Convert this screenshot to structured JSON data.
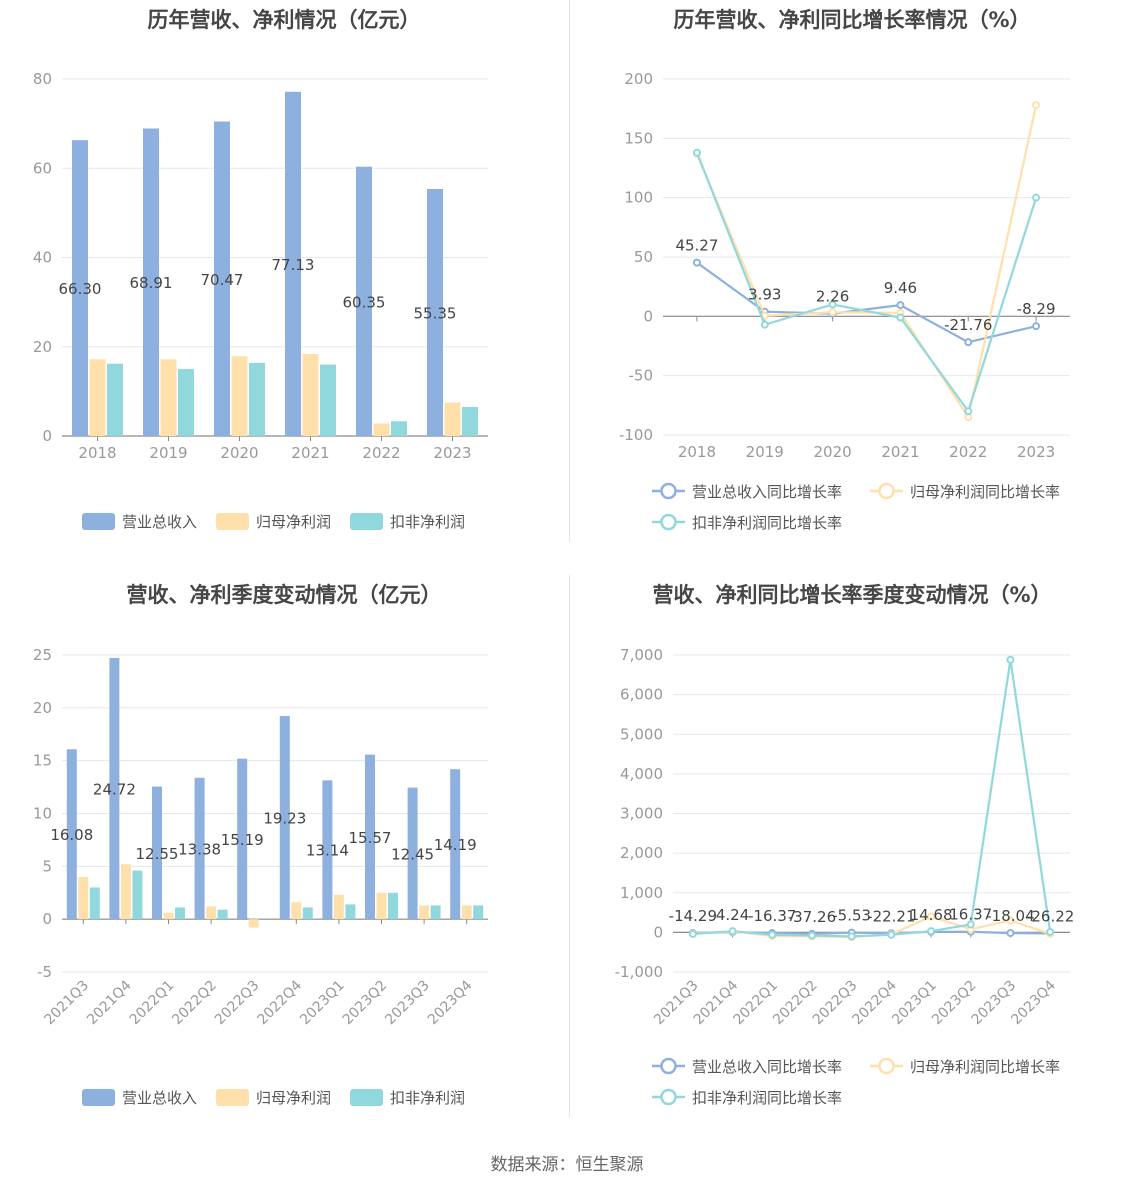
{
  "colors": {
    "revenue": "#8eb0de",
    "net": "#ffe0ab",
    "deducted": "#90d8dc",
    "grid": "#e3e7ef",
    "axis": "#8a8a8a",
    "label": "#999999",
    "value": "#444444"
  },
  "source_text": "数据来源：恒生聚源",
  "chart_data": [
    {
      "type": "bar",
      "title": "历年营收、净利情况（亿元）",
      "categories": [
        "2018",
        "2019",
        "2020",
        "2021",
        "2022",
        "2023"
      ],
      "series": [
        {
          "name": "营业总收入",
          "values": [
            66.3,
            68.91,
            70.47,
            77.13,
            60.35,
            55.35
          ]
        },
        {
          "name": "归母净利润",
          "values": [
            17.2,
            17.2,
            17.9,
            18.4,
            2.8,
            7.5
          ]
        },
        {
          "name": "扣非净利润",
          "values": [
            16.2,
            15.0,
            16.4,
            16.0,
            3.3,
            6.5
          ]
        }
      ],
      "data_labels": [
        "66.30",
        "68.91",
        "70.47",
        "77.13",
        "60.35",
        "55.35"
      ],
      "ylim": [
        0,
        80
      ],
      "yticks": [
        "0",
        "20",
        "40",
        "60",
        "80"
      ],
      "legend_position": "bottom"
    },
    {
      "type": "line",
      "title": "历年营收、净利同比增长率情况（%）",
      "categories": [
        "2018",
        "2019",
        "2020",
        "2021",
        "2022",
        "2023"
      ],
      "series": [
        {
          "name": "营业总收入同比增长率",
          "values": [
            45.27,
            3.93,
            2.26,
            9.46,
            -21.76,
            -8.29
          ]
        },
        {
          "name": "归母净利润同比增长率",
          "values": [
            137,
            0.5,
            3.5,
            3.0,
            -85,
            178
          ]
        },
        {
          "name": "扣非净利润同比增长率",
          "values": [
            138,
            -7,
            10,
            -1,
            -80,
            100
          ]
        }
      ],
      "data_labels": [
        "45.27",
        "3.93",
        "2.26",
        "9.46",
        "-21.76",
        "-8.29"
      ],
      "ylim": [
        -100,
        200
      ],
      "yticks": [
        "-100",
        "-50",
        "0",
        "50",
        "100",
        "150",
        "200"
      ],
      "legend_position": "bottom"
    },
    {
      "type": "bar",
      "title": "营收、净利季度变动情况（亿元）",
      "categories": [
        "2021Q3",
        "2021Q4",
        "2022Q1",
        "2022Q2",
        "2022Q3",
        "2022Q4",
        "2023Q1",
        "2023Q2",
        "2023Q3",
        "2023Q4"
      ],
      "series": [
        {
          "name": "营业总收入",
          "values": [
            16.08,
            24.72,
            12.55,
            13.38,
            15.19,
            19.23,
            13.14,
            15.57,
            12.45,
            14.19
          ]
        },
        {
          "name": "归母净利润",
          "values": [
            4.0,
            5.2,
            0.6,
            1.2,
            -0.8,
            1.6,
            2.3,
            2.5,
            1.3,
            1.3
          ]
        },
        {
          "name": "扣非净利润",
          "values": [
            3.0,
            4.6,
            1.1,
            0.9,
            0.0,
            1.1,
            1.4,
            2.5,
            1.3,
            1.3
          ]
        }
      ],
      "data_labels": [
        "16.08",
        "24.72",
        "12.55",
        "13.38",
        "15.19",
        "19.23",
        "13.14",
        "15.57",
        "12.45",
        "14.19"
      ],
      "ylim": [
        -5,
        25
      ],
      "yticks": [
        "-5",
        "0",
        "5",
        "10",
        "15",
        "20",
        "25"
      ],
      "legend_position": "bottom"
    },
    {
      "type": "line",
      "title": "营收、净利同比增长率季度变动情况（%）",
      "categories": [
        "2021Q3",
        "2021Q4",
        "2022Q1",
        "2022Q2",
        "2022Q3",
        "2022Q4",
        "2023Q1",
        "2023Q2",
        "2023Q3",
        "2023Q4"
      ],
      "series": [
        {
          "name": "营业总收入同比增长率",
          "values": [
            -14.29,
            4.24,
            -16.37,
            -37.26,
            -5.53,
            -22.21,
            14.68,
            16.37,
            -18.04,
            -26.22
          ]
        },
        {
          "name": "归母净利润同比增长率",
          "values": [
            -30,
            20,
            -90,
            -100,
            -120,
            -50,
            400,
            80,
            300,
            -40
          ]
        },
        {
          "name": "扣非净利润同比增长率",
          "values": [
            -40,
            30,
            -60,
            -80,
            -100,
            -60,
            30,
            200,
            6880,
            10
          ]
        }
      ],
      "data_labels": [
        "-14.29",
        "4.24",
        "-16.37",
        "-37.26",
        "-5.53",
        "-22.21",
        "14.68",
        "16.37",
        "-18.04",
        "-26.22"
      ],
      "ylim": [
        -1000,
        7000
      ],
      "yticks": [
        "-1,000",
        "0",
        "1,000",
        "2,000",
        "3,000",
        "4,000",
        "5,000",
        "6,000",
        "7,000"
      ],
      "legend_position": "bottom"
    }
  ]
}
